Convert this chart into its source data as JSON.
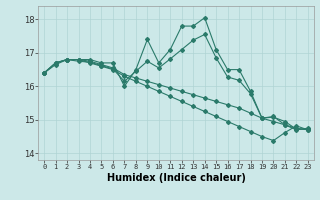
{
  "title": "",
  "xlabel": "Humidex (Indice chaleur)",
  "xlim": [
    -0.5,
    23.5
  ],
  "ylim": [
    13.8,
    18.4
  ],
  "yticks": [
    14,
    15,
    16,
    17,
    18
  ],
  "xtick_labels": [
    "0",
    "1",
    "2",
    "3",
    "4",
    "5",
    "6",
    "7",
    "8",
    "9",
    "10",
    "11",
    "12",
    "13",
    "14",
    "15",
    "16",
    "17",
    "18",
    "19",
    "20",
    "21",
    "22",
    "23"
  ],
  "bg_color": "#cce8e8",
  "grid_color": "#b0d4d4",
  "line_color": "#2a7a6a",
  "series": [
    [
      16.4,
      16.7,
      16.8,
      16.8,
      16.8,
      16.7,
      16.7,
      16.0,
      16.5,
      17.4,
      16.7,
      17.1,
      17.8,
      17.8,
      18.05,
      17.1,
      16.5,
      16.5,
      15.85,
      15.05,
      15.1,
      14.85,
      14.7,
      14.75
    ],
    [
      16.4,
      16.65,
      16.8,
      16.75,
      16.72,
      16.62,
      16.52,
      16.15,
      16.45,
      16.75,
      16.55,
      16.82,
      17.1,
      17.38,
      17.55,
      16.85,
      16.28,
      16.18,
      15.78,
      15.05,
      15.08,
      14.95,
      14.72,
      14.72
    ],
    [
      16.4,
      16.7,
      16.8,
      16.8,
      16.75,
      16.65,
      16.55,
      16.35,
      16.25,
      16.15,
      16.05,
      15.95,
      15.85,
      15.75,
      15.65,
      15.55,
      15.45,
      15.35,
      15.2,
      15.05,
      14.95,
      14.85,
      14.75,
      14.7
    ],
    [
      16.4,
      16.7,
      16.8,
      16.8,
      16.7,
      16.6,
      16.5,
      16.3,
      16.15,
      16.0,
      15.85,
      15.7,
      15.55,
      15.4,
      15.25,
      15.1,
      14.95,
      14.8,
      14.65,
      14.5,
      14.38,
      14.62,
      14.82,
      14.7
    ]
  ],
  "marker": "D",
  "marker_size": 2,
  "linewidth": 0.8,
  "xlabel_fontsize": 7,
  "tick_fontsize": 5,
  "ytick_fontsize": 6
}
